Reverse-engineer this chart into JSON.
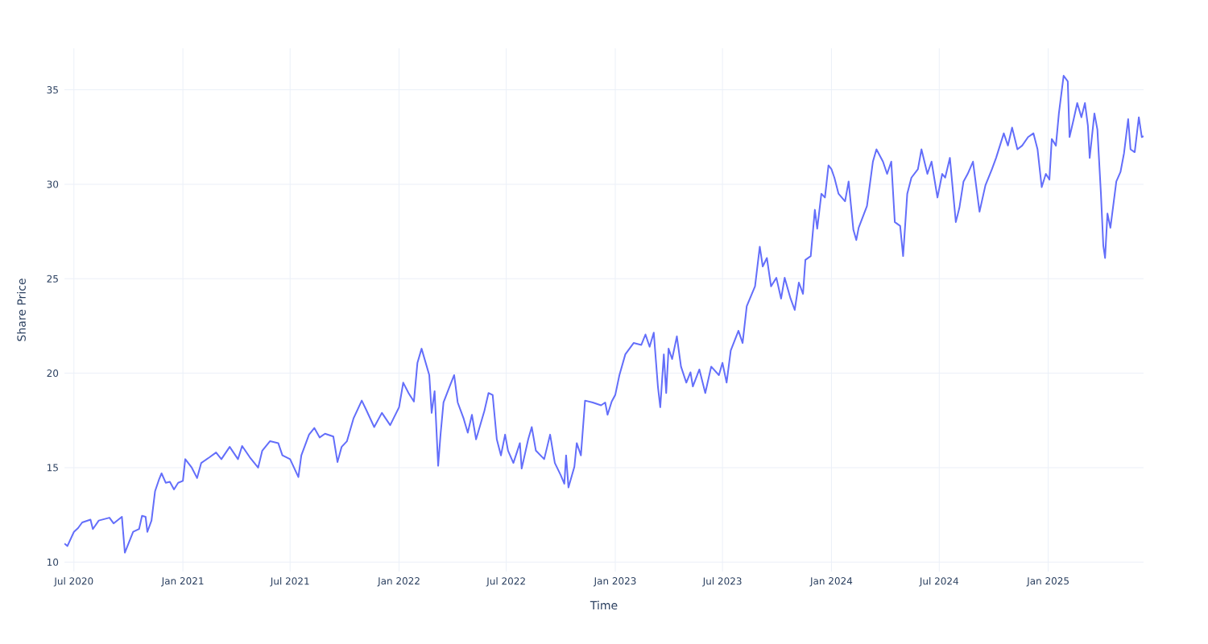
{
  "chart_data": {
    "type": "line",
    "xlabel": "Time",
    "ylabel": "Share Price",
    "grid": true,
    "marker": "none",
    "line_style": "solid",
    "xlim": [
      "2020-06-15",
      "2025-06-11"
    ],
    "ylim": [
      9.5,
      37.2
    ],
    "xticks": [
      {
        "value": "2020-07-01",
        "label": "Jul 2020"
      },
      {
        "value": "2021-01-01",
        "label": "Jan 2021"
      },
      {
        "value": "2021-07-01",
        "label": "Jul 2021"
      },
      {
        "value": "2022-01-01",
        "label": "Jan 2022"
      },
      {
        "value": "2022-07-01",
        "label": "Jul 2022"
      },
      {
        "value": "2023-01-01",
        "label": "Jan 2023"
      },
      {
        "value": "2023-07-01",
        "label": "Jul 2023"
      },
      {
        "value": "2024-01-01",
        "label": "Jan 2024"
      },
      {
        "value": "2024-07-01",
        "label": "Jul 2024"
      },
      {
        "value": "2025-01-01",
        "label": "Jan 2025"
      }
    ],
    "yticks": [
      10,
      15,
      20,
      25,
      30,
      35
    ],
    "series": [
      {
        "color": "#636efa",
        "x": [
          "2020-06-15",
          "2020-06-20",
          "2020-07-01",
          "2020-07-08",
          "2020-07-15",
          "2020-07-29",
          "2020-08-02",
          "2020-08-12",
          "2020-08-30",
          "2020-09-06",
          "2020-09-20",
          "2020-09-25",
          "2020-10-09",
          "2020-10-19",
          "2020-10-24",
          "2020-10-30",
          "2020-11-02",
          "2020-11-09",
          "2020-11-15",
          "2020-11-22",
          "2020-11-26",
          "2020-12-03",
          "2020-12-10",
          "2020-12-17",
          "2020-12-24",
          "2021-01-01",
          "2021-01-05",
          "2021-01-16",
          "2021-01-25",
          "2021-02-01",
          "2021-02-15",
          "2021-02-26",
          "2021-03-07",
          "2021-03-21",
          "2021-04-04",
          "2021-04-11",
          "2021-04-24",
          "2021-05-08",
          "2021-05-15",
          "2021-05-28",
          "2021-06-11",
          "2021-06-18",
          "2021-07-01",
          "2021-07-15",
          "2021-07-20",
          "2021-08-02",
          "2021-08-11",
          "2021-08-20",
          "2021-08-29",
          "2021-09-12",
          "2021-09-19",
          "2021-09-26",
          "2021-10-05",
          "2021-10-16",
          "2021-10-30",
          "2021-11-06",
          "2021-11-20",
          "2021-12-03",
          "2021-12-17",
          "2022-01-01",
          "2022-01-08",
          "2022-01-17",
          "2022-01-26",
          "2022-02-01",
          "2022-02-08",
          "2022-02-21",
          "2022-02-25",
          "2022-03-02",
          "2022-03-08",
          "2022-03-12",
          "2022-03-17",
          "2022-03-28",
          "2022-04-04",
          "2022-04-10",
          "2022-04-20",
          "2022-04-27",
          "2022-05-04",
          "2022-05-11",
          "2022-05-25",
          "2022-06-01",
          "2022-06-08",
          "2022-06-15",
          "2022-06-22",
          "2022-06-29",
          "2022-07-04",
          "2022-07-13",
          "2022-07-24",
          "2022-07-27",
          "2022-08-07",
          "2022-08-13",
          "2022-08-20",
          "2022-09-03",
          "2022-09-13",
          "2022-09-21",
          "2022-10-01",
          "2022-10-07",
          "2022-10-10",
          "2022-10-14",
          "2022-10-24",
          "2022-10-28",
          "2022-11-04",
          "2022-11-11",
          "2022-11-24",
          "2022-12-08",
          "2022-12-15",
          "2022-12-19",
          "2022-12-26",
          "2023-01-01",
          "2023-01-08",
          "2023-01-18",
          "2023-02-01",
          "2023-02-14",
          "2023-02-21",
          "2023-02-28",
          "2023-03-07",
          "2023-03-14",
          "2023-03-18",
          "2023-03-24",
          "2023-03-28",
          "2023-04-01",
          "2023-04-07",
          "2023-04-15",
          "2023-04-22",
          "2023-05-01",
          "2023-05-08",
          "2023-05-12",
          "2023-05-23",
          "2023-06-02",
          "2023-06-12",
          "2023-06-25",
          "2023-07-01",
          "2023-07-08",
          "2023-07-15",
          "2023-07-28",
          "2023-08-04",
          "2023-08-11",
          "2023-08-25",
          "2023-09-02",
          "2023-09-07",
          "2023-09-14",
          "2023-09-21",
          "2023-09-30",
          "2023-10-08",
          "2023-10-14",
          "2023-10-24",
          "2023-10-31",
          "2023-11-07",
          "2023-11-14",
          "2023-11-18",
          "2023-11-27",
          "2023-12-04",
          "2023-12-08",
          "2023-12-15",
          "2023-12-21",
          "2023-12-27",
          "2024-01-01",
          "2024-01-06",
          "2024-01-13",
          "2024-01-24",
          "2024-01-30",
          "2024-02-07",
          "2024-02-12",
          "2024-02-16",
          "2024-03-01",
          "2024-03-11",
          "2024-03-17",
          "2024-03-28",
          "2024-04-04",
          "2024-04-11",
          "2024-04-17",
          "2024-04-26",
          "2024-05-01",
          "2024-05-08",
          "2024-05-15",
          "2024-05-26",
          "2024-06-01",
          "2024-06-11",
          "2024-06-18",
          "2024-06-28",
          "2024-07-06",
          "2024-07-11",
          "2024-07-19",
          "2024-07-29",
          "2024-08-04",
          "2024-08-11",
          "2024-08-18",
          "2024-08-27",
          "2024-09-07",
          "2024-09-17",
          "2024-09-28",
          "2024-10-05",
          "2024-10-18",
          "2024-10-25",
          "2024-11-01",
          "2024-11-10",
          "2024-11-18",
          "2024-11-28",
          "2024-12-07",
          "2024-12-14",
          "2024-12-21",
          "2024-12-28",
          "2025-01-03",
          "2025-01-07",
          "2025-01-14",
          "2025-01-19",
          "2025-01-27",
          "2025-02-03",
          "2025-02-06",
          "2025-02-13",
          "2025-02-19",
          "2025-02-26",
          "2025-03-04",
          "2025-03-09",
          "2025-03-12",
          "2025-03-20",
          "2025-03-25",
          "2025-03-31",
          "2025-04-04",
          "2025-04-07",
          "2025-04-11",
          "2025-04-16",
          "2025-04-26",
          "2025-05-03",
          "2025-05-09",
          "2025-05-16",
          "2025-05-20",
          "2025-05-27",
          "2025-06-03",
          "2025-06-08",
          "2025-06-11"
        ],
        "values": [
          10.98,
          10.85,
          11.6,
          11.8,
          12.1,
          12.25,
          11.75,
          12.2,
          12.35,
          12.05,
          12.4,
          10.5,
          11.6,
          11.75,
          12.45,
          12.4,
          11.6,
          12.2,
          13.75,
          14.4,
          14.7,
          14.2,
          14.25,
          13.85,
          14.2,
          14.3,
          15.45,
          15.0,
          14.45,
          15.25,
          15.55,
          15.8,
          15.45,
          16.1,
          15.45,
          16.15,
          15.55,
          15.0,
          15.9,
          16.4,
          16.3,
          15.65,
          15.45,
          14.5,
          15.65,
          16.75,
          17.1,
          16.6,
          16.8,
          16.65,
          15.3,
          16.1,
          16.4,
          17.6,
          18.55,
          18.1,
          17.15,
          17.9,
          17.25,
          18.2,
          19.5,
          18.95,
          18.5,
          20.55,
          21.3,
          19.9,
          17.9,
          19.05,
          15.1,
          16.75,
          18.45,
          19.35,
          19.9,
          18.45,
          17.6,
          16.85,
          17.8,
          16.5,
          18.0,
          18.95,
          18.85,
          16.5,
          15.65,
          16.75,
          15.9,
          15.25,
          16.3,
          14.95,
          16.5,
          17.15,
          15.9,
          15.45,
          16.75,
          15.25,
          14.6,
          14.15,
          15.65,
          13.95,
          15.05,
          16.3,
          15.65,
          18.55,
          18.45,
          18.3,
          18.45,
          17.8,
          18.5,
          18.85,
          19.9,
          21.0,
          21.6,
          21.5,
          22.05,
          21.4,
          22.15,
          19.3,
          18.2,
          21.0,
          18.95,
          21.3,
          20.75,
          21.95,
          20.35,
          19.5,
          20.05,
          19.3,
          20.2,
          18.95,
          20.35,
          19.9,
          20.55,
          19.5,
          21.2,
          22.25,
          21.6,
          23.55,
          24.6,
          26.7,
          25.65,
          26.1,
          24.6,
          25.05,
          23.95,
          25.05,
          23.95,
          23.35,
          24.8,
          24.2,
          26.0,
          26.2,
          28.65,
          27.65,
          29.5,
          29.3,
          31.0,
          30.8,
          30.35,
          29.5,
          29.1,
          30.15,
          27.6,
          27.05,
          27.7,
          28.85,
          31.2,
          31.85,
          31.2,
          30.55,
          31.2,
          28.0,
          27.8,
          26.2,
          29.5,
          30.35,
          30.8,
          31.85,
          30.55,
          31.2,
          29.3,
          30.55,
          30.35,
          31.4,
          28.0,
          28.75,
          30.15,
          30.55,
          31.2,
          28.55,
          29.95,
          30.8,
          31.4,
          32.7,
          32.05,
          33.0,
          31.85,
          32.05,
          32.5,
          32.7,
          31.85,
          29.85,
          30.55,
          30.25,
          32.4,
          32.05,
          33.75,
          35.75,
          35.45,
          32.5,
          33.45,
          34.3,
          33.55,
          34.3,
          33.1,
          31.4,
          33.75,
          32.9,
          29.5,
          26.75,
          26.1,
          28.45,
          27.7,
          30.15,
          30.65,
          31.65,
          33.45,
          31.85,
          31.7,
          33.55,
          32.5,
          32.55
        ]
      }
    ]
  }
}
